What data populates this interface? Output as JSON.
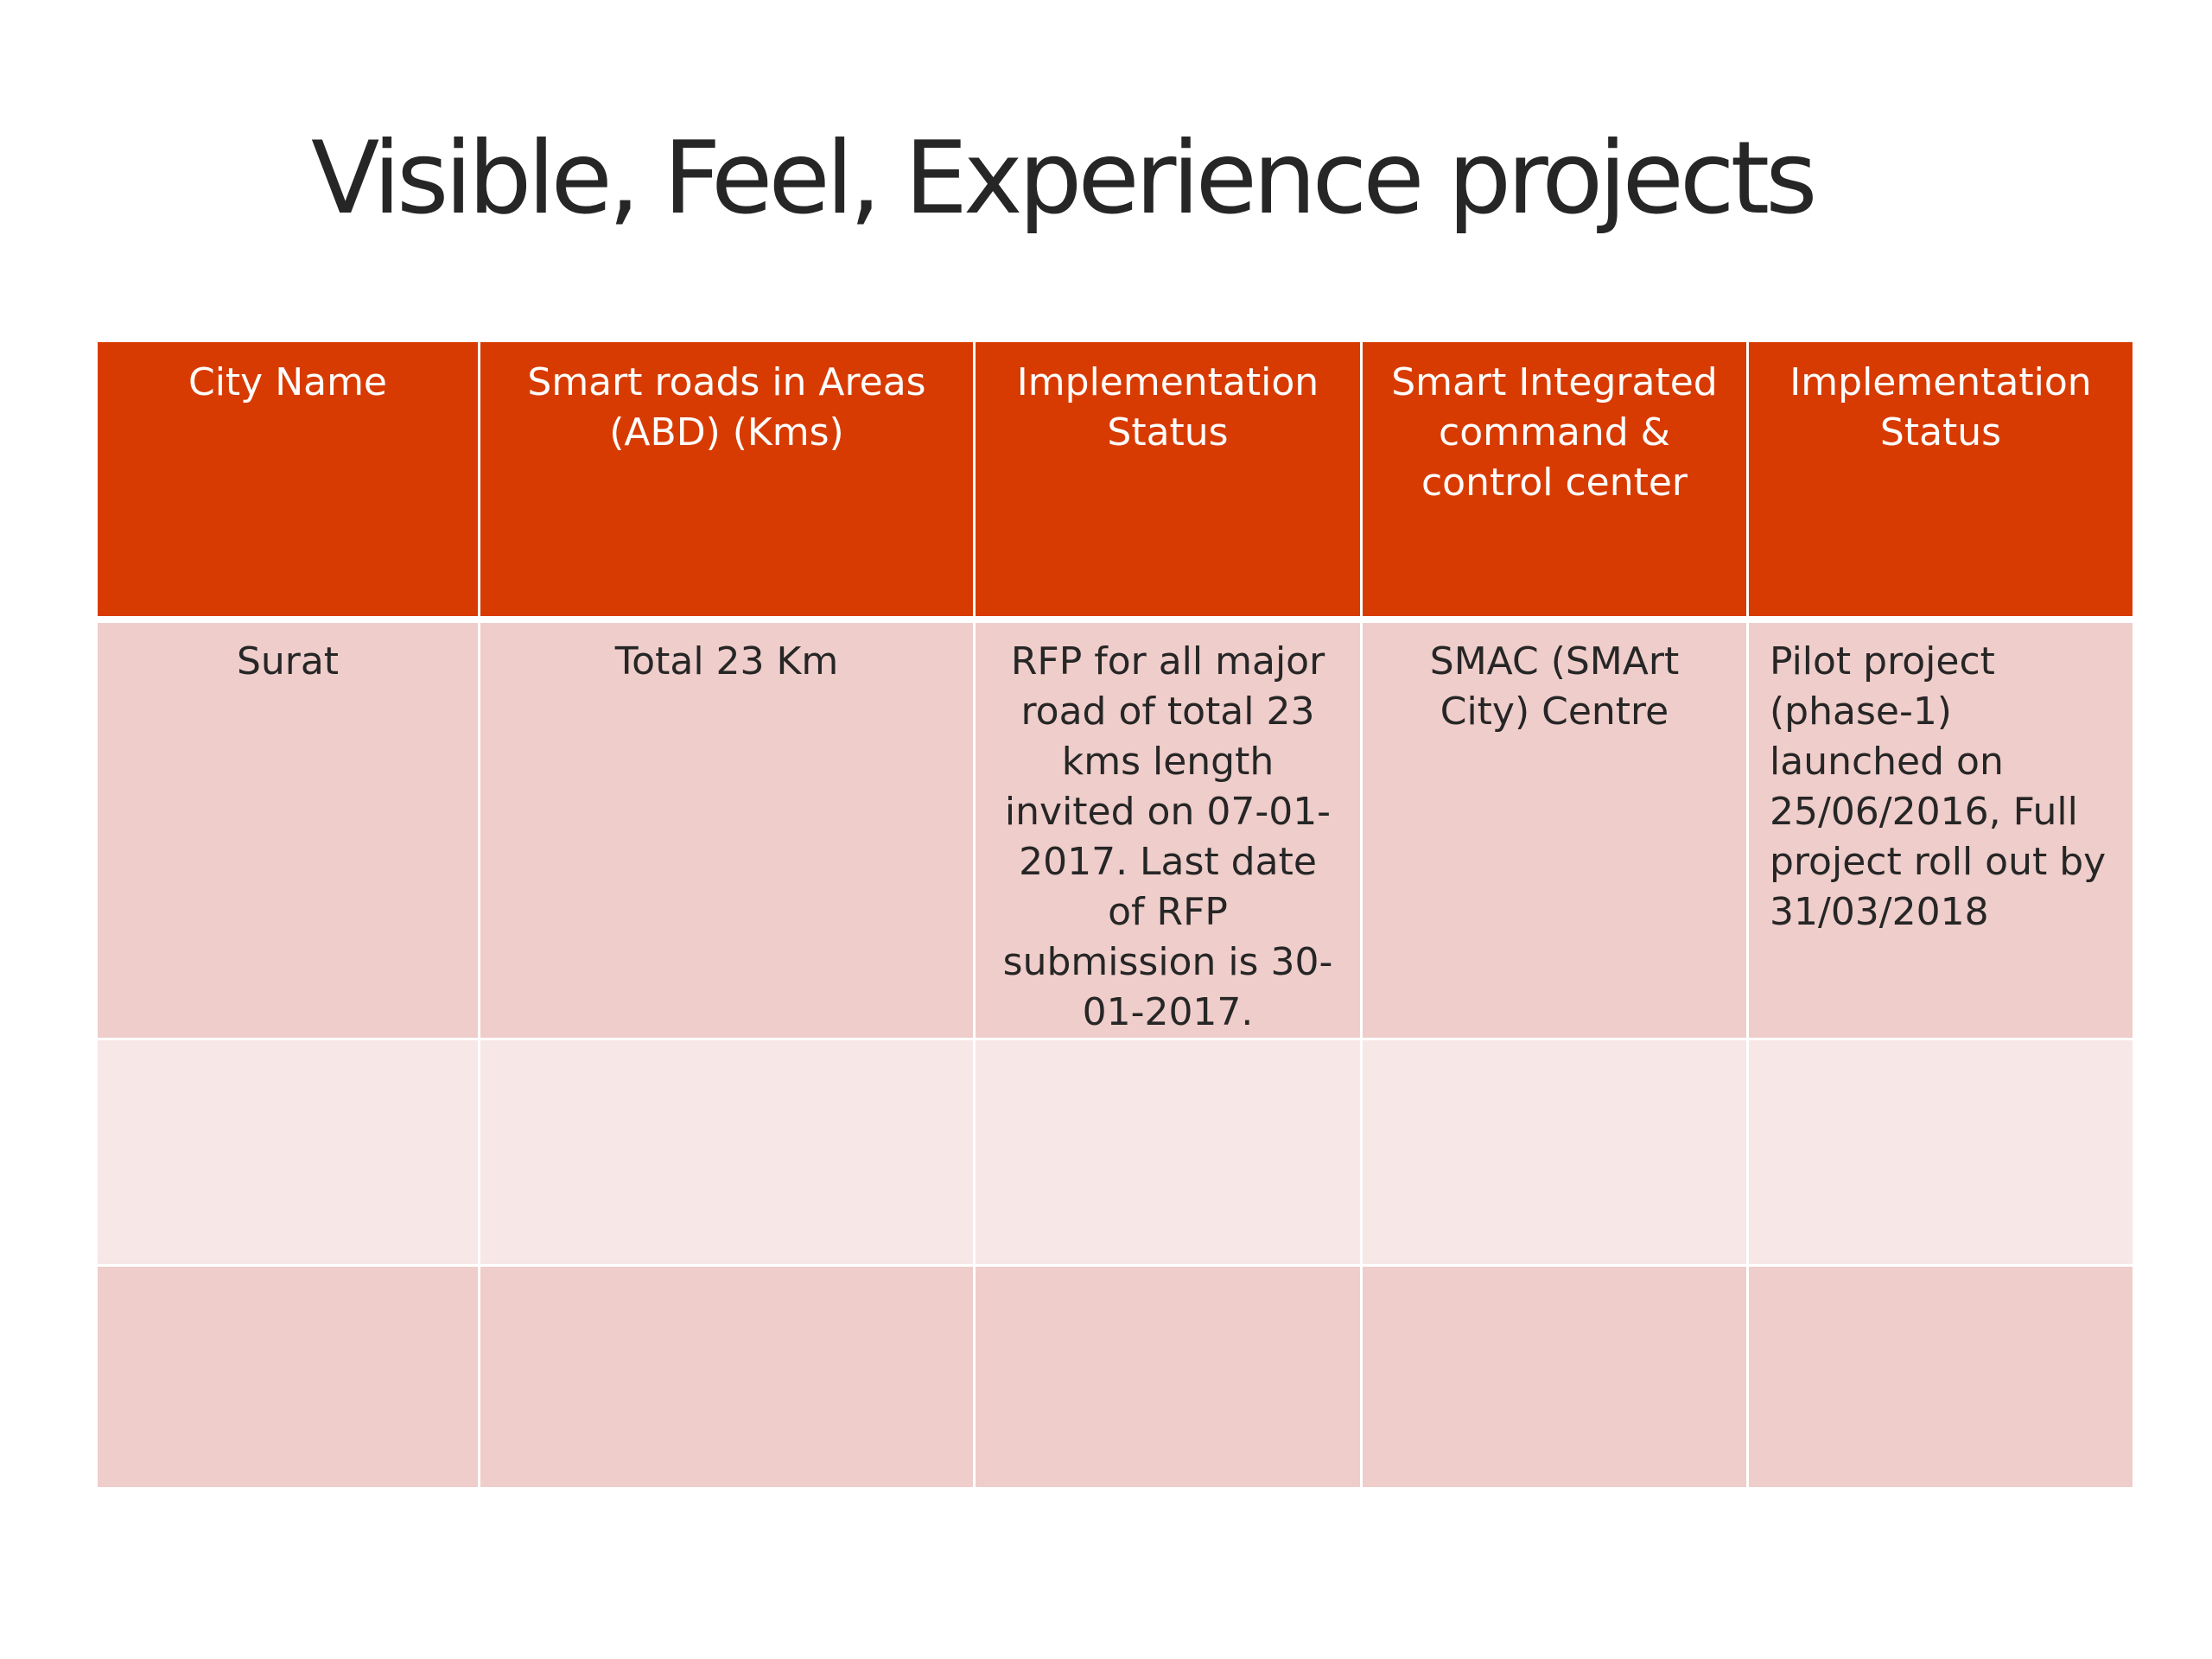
{
  "title": "Visible, Feel, Experience projects",
  "table": {
    "headers": [
      "City Name",
      "Smart roads in Areas (ABD) (Kms)",
      "Implementation Status",
      "Smart Integrated command & control center",
      "Implementation Status"
    ],
    "rows": [
      [
        "Surat",
        "Total 23 Km",
        "RFP for all major road of total 23 kms length invited on 07-01-2017. Last date of RFP submission is 30-01-2017.",
        "SMAC (SMArt City) Centre",
        "Pilot project (phase-1) launched on 25/06/2016, Full project roll out by 31/03/2018"
      ],
      [
        "",
        "",
        "",
        "",
        ""
      ],
      [
        "",
        "",
        "",
        "",
        ""
      ]
    ]
  },
  "colors": {
    "header_bg": "#d83b01",
    "row_dark": "#efcdca",
    "row_light": "#f7e7e6"
  }
}
